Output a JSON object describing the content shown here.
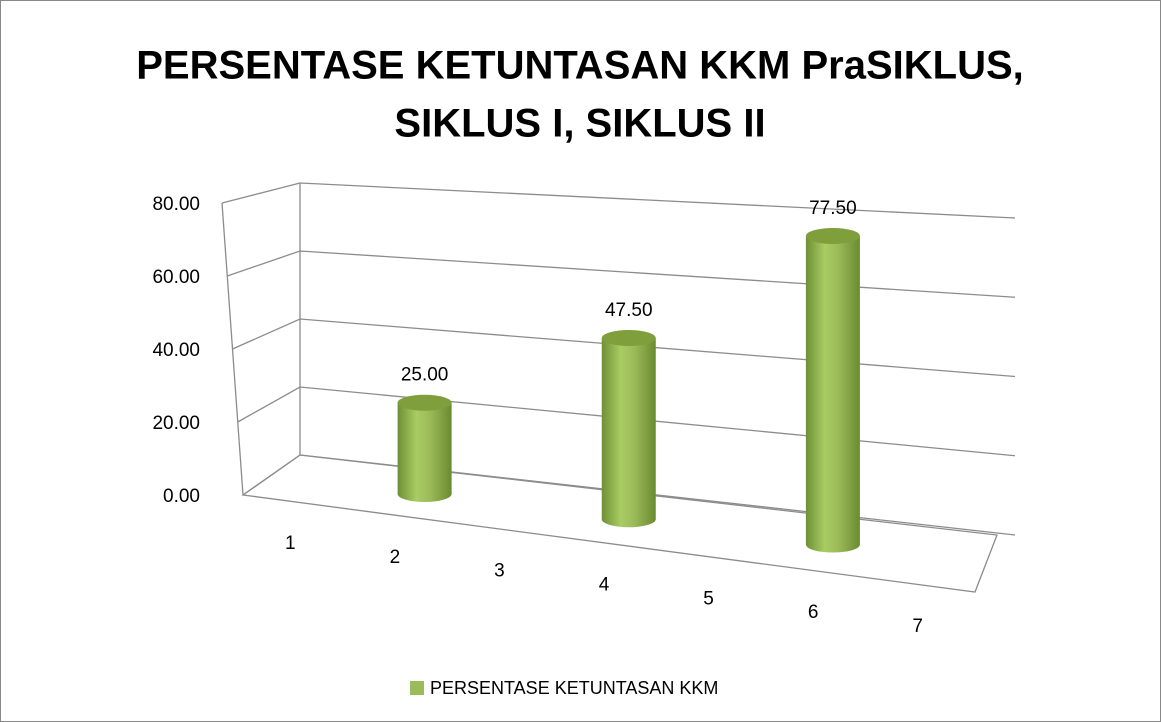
{
  "chart_data": {
    "type": "bar3d",
    "title": [
      "PERSENTASE KETUNTASAN  KKM PraSIKLUS,",
      "SIKLUS I, SIKLUS II"
    ],
    "categories": [
      "1",
      "2",
      "3",
      "4",
      "5",
      "6",
      "7"
    ],
    "series": [
      {
        "name": "PERSENTASE KETUNTASAN KKM",
        "color": "#9bbb59",
        "values": [
          null,
          25,
          null,
          47.5,
          null,
          77.5,
          null
        ],
        "value_labels": [
          null,
          "25.00",
          null,
          "47.50",
          null,
          "77.50",
          null
        ]
      }
    ],
    "ylim": [
      0,
      80
    ],
    "yticks": [
      {
        "value": 0,
        "label": "0.00"
      },
      {
        "value": 20,
        "label": "20.00"
      },
      {
        "value": 40,
        "label": "40.00"
      },
      {
        "value": 60,
        "label": "60.00"
      },
      {
        "value": 80,
        "label": "80.00"
      }
    ],
    "grid": true,
    "legend": "bottom"
  }
}
